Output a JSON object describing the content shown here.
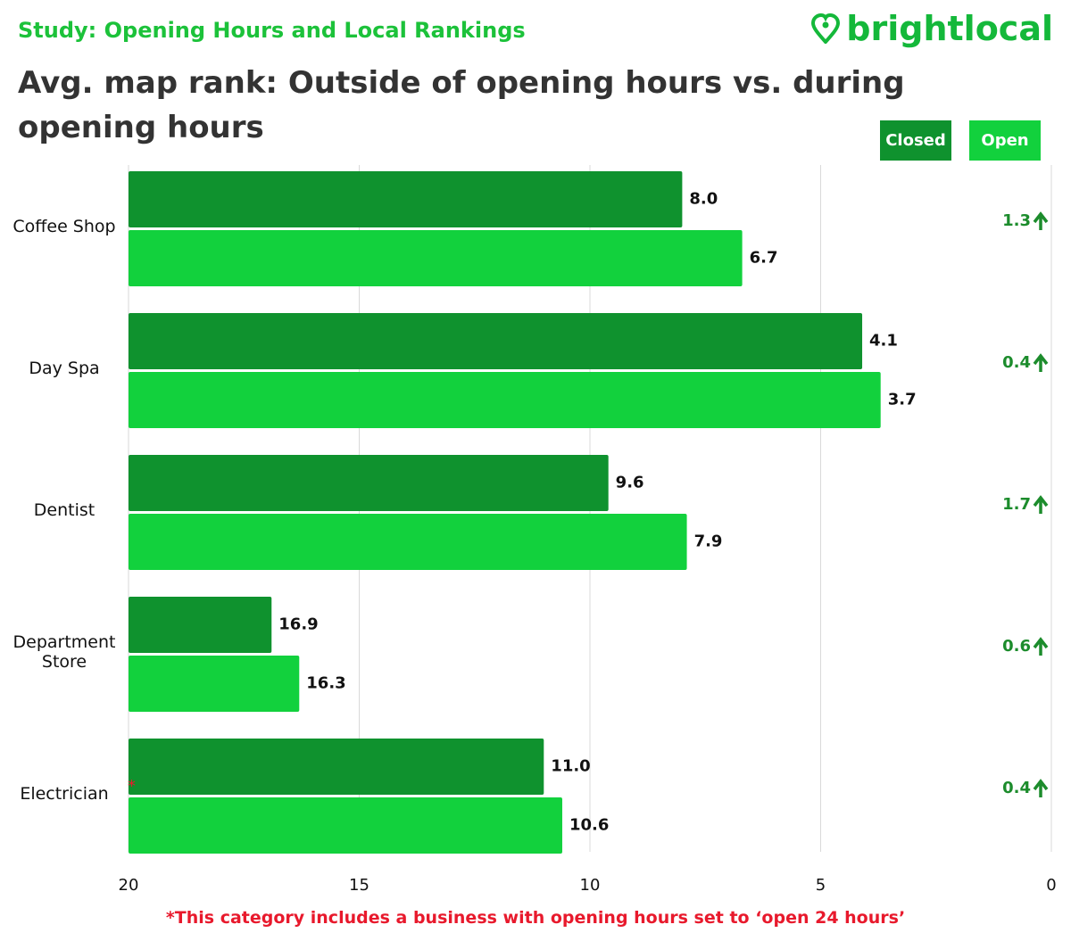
{
  "kicker": "Study: Opening Hours and Local Rankings",
  "logo": "brightlocal",
  "chart_data": {
    "type": "bar",
    "orientation": "horizontal",
    "title": "Avg. map rank: Outside of opening hours vs. during opening hours",
    "categories": [
      "Coffee Shop",
      "Day Spa",
      "Dentist",
      "Department Store",
      "Electrician"
    ],
    "series": [
      {
        "name": "Closed",
        "color": "#0f922e",
        "values": [
          8.0,
          4.1,
          9.6,
          16.9,
          11.0
        ],
        "value_labels": [
          "8.0",
          "4.1",
          "9.6",
          "16.9",
          "11.0"
        ]
      },
      {
        "name": "Open",
        "color": "#12d13d",
        "values": [
          6.7,
          3.7,
          7.9,
          16.3,
          10.6
        ],
        "value_labels": [
          "6.7",
          "3.7",
          "7.9",
          "16.3",
          "10.6"
        ]
      }
    ],
    "differences": [
      1.3,
      0.4,
      1.7,
      0.6,
      0.4
    ],
    "difference_color": "#1c8c2c",
    "xlim": [
      20,
      0
    ],
    "xticks": [
      20,
      15,
      10,
      5,
      0
    ],
    "grid": true,
    "footnote_marker": "*",
    "footnote": "*This category includes a business with opening hours set to ‘open 24 hours’"
  }
}
